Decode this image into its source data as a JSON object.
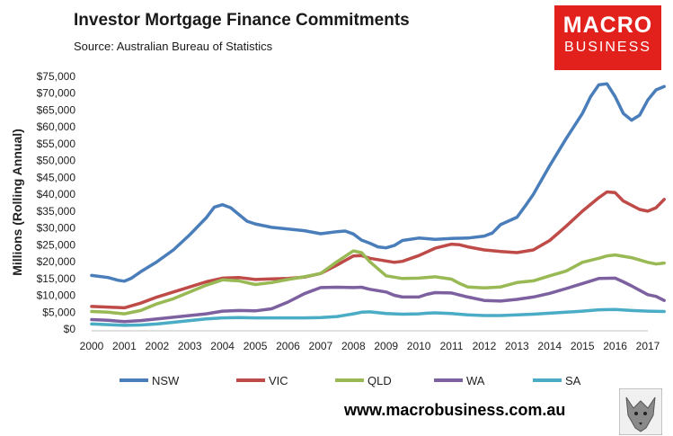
{
  "header": {
    "title": "Investor Mortgage Finance Commitments",
    "subtitle": "Source: Australian Bureau of Statistics"
  },
  "logo": {
    "line1": "MACRO",
    "line2": "BUSINESS",
    "color": "#e2201c",
    "mascot_icon": "wolf-icon"
  },
  "footer": {
    "url": "www.macrobusiness.com.au"
  },
  "chart_data": {
    "type": "line",
    "title": "Investor Mortgage Finance Commitments",
    "subtitle": "Source: Australian Bureau of Statistics",
    "xlabel": "",
    "ylabel": "Millions (Rolling Annual)",
    "xlim": [
      2000,
      2017
    ],
    "ylim": [
      0,
      75000
    ],
    "x_ticks": [
      "2000",
      "2001",
      "2002",
      "2003",
      "2004",
      "2005",
      "2006",
      "2007",
      "2008",
      "2009",
      "2010",
      "2011",
      "2012",
      "2013",
      "2014",
      "2015",
      "2016",
      "2017"
    ],
    "y_ticks": [
      "$0",
      "$5,000",
      "$10,000",
      "$15,000",
      "$20,000",
      "$25,000",
      "$30,000",
      "$35,000",
      "$40,000",
      "$45,000",
      "$50,000",
      "$55,000",
      "$60,000",
      "$65,000",
      "$70,000",
      "$75,000"
    ],
    "grid": false,
    "legend_position": "bottom",
    "series": [
      {
        "name": "NSW",
        "color": "#4a7ebb",
        "points": [
          [
            2000,
            15900
          ],
          [
            2000.5,
            15300
          ],
          [
            2000.8,
            14500
          ],
          [
            2001,
            14200
          ],
          [
            2001.2,
            15000
          ],
          [
            2001.5,
            17000
          ],
          [
            2002,
            20000
          ],
          [
            2002.5,
            23500
          ],
          [
            2003,
            28000
          ],
          [
            2003.5,
            33000
          ],
          [
            2003.75,
            36200
          ],
          [
            2004,
            36900
          ],
          [
            2004.25,
            36000
          ],
          [
            2004.5,
            34000
          ],
          [
            2004.75,
            32000
          ],
          [
            2005,
            31200
          ],
          [
            2005.5,
            30200
          ],
          [
            2006,
            29700
          ],
          [
            2006.5,
            29200
          ],
          [
            2007,
            28300
          ],
          [
            2007.5,
            28900
          ],
          [
            2007.75,
            29100
          ],
          [
            2008,
            28200
          ],
          [
            2008.25,
            26400
          ],
          [
            2008.5,
            25500
          ],
          [
            2008.75,
            24400
          ],
          [
            2009,
            24100
          ],
          [
            2009.25,
            24800
          ],
          [
            2009.5,
            26300
          ],
          [
            2010,
            27000
          ],
          [
            2010.5,
            26600
          ],
          [
            2011,
            26900
          ],
          [
            2011.5,
            27000
          ],
          [
            2012,
            27600
          ],
          [
            2012.25,
            28500
          ],
          [
            2012.5,
            31000
          ],
          [
            2013,
            33200
          ],
          [
            2013.25,
            36500
          ],
          [
            2013.5,
            40000
          ],
          [
            2014,
            48500
          ],
          [
            2014.5,
            56500
          ],
          [
            2015,
            64000
          ],
          [
            2015.25,
            69000
          ],
          [
            2015.5,
            72500
          ],
          [
            2015.75,
            72800
          ],
          [
            2016,
            69000
          ],
          [
            2016.25,
            64000
          ],
          [
            2016.5,
            62000
          ],
          [
            2016.75,
            63500
          ],
          [
            2017,
            68000
          ],
          [
            2017.25,
            71000
          ],
          [
            2017.5,
            72000
          ]
        ]
      },
      {
        "name": "VIC",
        "color": "#be4b48",
        "points": [
          [
            2000,
            6700
          ],
          [
            2000.5,
            6500
          ],
          [
            2001,
            6300
          ],
          [
            2001.5,
            7700
          ],
          [
            2002,
            9500
          ],
          [
            2002.5,
            11000
          ],
          [
            2003,
            12500
          ],
          [
            2003.5,
            14000
          ],
          [
            2004,
            15100
          ],
          [
            2004.5,
            15300
          ],
          [
            2005,
            14700
          ],
          [
            2005.5,
            14900
          ],
          [
            2006,
            15000
          ],
          [
            2006.5,
            15400
          ],
          [
            2007,
            16500
          ],
          [
            2007.5,
            19000
          ],
          [
            2008,
            21700
          ],
          [
            2008.25,
            21800
          ],
          [
            2008.5,
            21000
          ],
          [
            2009,
            20200
          ],
          [
            2009.25,
            19800
          ],
          [
            2009.5,
            20100
          ],
          [
            2010,
            21800
          ],
          [
            2010.5,
            24000
          ],
          [
            2011,
            25200
          ],
          [
            2011.25,
            25000
          ],
          [
            2011.5,
            24400
          ],
          [
            2012,
            23500
          ],
          [
            2012.5,
            23000
          ],
          [
            2013,
            22700
          ],
          [
            2013.5,
            23500
          ],
          [
            2014,
            26300
          ],
          [
            2014.5,
            30500
          ],
          [
            2015,
            35000
          ],
          [
            2015.5,
            39000
          ],
          [
            2015.75,
            40700
          ],
          [
            2016,
            40500
          ],
          [
            2016.25,
            38000
          ],
          [
            2016.75,
            35500
          ],
          [
            2017,
            35000
          ],
          [
            2017.25,
            36000
          ],
          [
            2017.5,
            38500
          ]
        ]
      },
      {
        "name": "QLD",
        "color": "#98b954",
        "points": [
          [
            2000,
            5200
          ],
          [
            2000.5,
            5000
          ],
          [
            2001,
            4500
          ],
          [
            2001.5,
            5500
          ],
          [
            2002,
            7500
          ],
          [
            2002.5,
            9000
          ],
          [
            2003,
            11000
          ],
          [
            2003.5,
            13000
          ],
          [
            2004,
            14600
          ],
          [
            2004.5,
            14300
          ],
          [
            2005,
            13200
          ],
          [
            2005.5,
            13800
          ],
          [
            2006,
            14700
          ],
          [
            2006.5,
            15500
          ],
          [
            2007,
            16500
          ],
          [
            2007.5,
            20000
          ],
          [
            2008,
            23200
          ],
          [
            2008.25,
            22700
          ],
          [
            2008.5,
            20000
          ],
          [
            2009,
            15800
          ],
          [
            2009.5,
            15000
          ],
          [
            2010,
            15100
          ],
          [
            2010.5,
            15500
          ],
          [
            2011,
            14800
          ],
          [
            2011.25,
            13500
          ],
          [
            2011.5,
            12500
          ],
          [
            2012,
            12200
          ],
          [
            2012.5,
            12500
          ],
          [
            2013,
            13800
          ],
          [
            2013.5,
            14300
          ],
          [
            2014,
            15800
          ],
          [
            2014.5,
            17200
          ],
          [
            2015,
            19800
          ],
          [
            2015.5,
            21000
          ],
          [
            2015.75,
            21700
          ],
          [
            2016,
            22000
          ],
          [
            2016.5,
            21200
          ],
          [
            2017,
            19800
          ],
          [
            2017.25,
            19300
          ],
          [
            2017.5,
            19600
          ]
        ]
      },
      {
        "name": "WA",
        "color": "#7d60a0",
        "points": [
          [
            2000,
            2800
          ],
          [
            2000.5,
            2600
          ],
          [
            2001,
            2200
          ],
          [
            2001.5,
            2500
          ],
          [
            2002,
            3000
          ],
          [
            2002.5,
            3500
          ],
          [
            2003,
            4000
          ],
          [
            2003.5,
            4500
          ],
          [
            2004,
            5300
          ],
          [
            2004.5,
            5500
          ],
          [
            2005,
            5400
          ],
          [
            2005.5,
            6000
          ],
          [
            2006,
            8000
          ],
          [
            2006.5,
            10500
          ],
          [
            2007,
            12300
          ],
          [
            2007.5,
            12400
          ],
          [
            2008,
            12300
          ],
          [
            2008.25,
            12400
          ],
          [
            2008.5,
            11800
          ],
          [
            2009,
            11000
          ],
          [
            2009.25,
            10000
          ],
          [
            2009.5,
            9500
          ],
          [
            2010,
            9500
          ],
          [
            2010.25,
            10300
          ],
          [
            2010.5,
            10800
          ],
          [
            2011,
            10700
          ],
          [
            2011.5,
            9500
          ],
          [
            2012,
            8500
          ],
          [
            2012.5,
            8300
          ],
          [
            2013,
            8800
          ],
          [
            2013.5,
            9500
          ],
          [
            2014,
            10600
          ],
          [
            2014.5,
            12000
          ],
          [
            2015,
            13500
          ],
          [
            2015.5,
            15000
          ],
          [
            2016,
            15100
          ],
          [
            2016.25,
            14000
          ],
          [
            2016.5,
            12800
          ],
          [
            2017,
            10200
          ],
          [
            2017.25,
            9700
          ],
          [
            2017.5,
            8500
          ]
        ]
      },
      {
        "name": "SA",
        "color": "#4bacc6",
        "points": [
          [
            2000,
            1500
          ],
          [
            2000.5,
            1300
          ],
          [
            2001,
            1100
          ],
          [
            2001.5,
            1200
          ],
          [
            2002,
            1500
          ],
          [
            2002.5,
            2000
          ],
          [
            2003,
            2500
          ],
          [
            2003.5,
            3000
          ],
          [
            2004,
            3300
          ],
          [
            2004.5,
            3400
          ],
          [
            2005,
            3300
          ],
          [
            2005.5,
            3300
          ],
          [
            2006,
            3300
          ],
          [
            2006.5,
            3300
          ],
          [
            2007,
            3400
          ],
          [
            2007.5,
            3700
          ],
          [
            2008,
            4500
          ],
          [
            2008.25,
            5000
          ],
          [
            2008.5,
            5100
          ],
          [
            2009,
            4600
          ],
          [
            2009.5,
            4400
          ],
          [
            2010,
            4500
          ],
          [
            2010.25,
            4700
          ],
          [
            2010.5,
            4800
          ],
          [
            2011,
            4600
          ],
          [
            2011.5,
            4200
          ],
          [
            2012,
            4000
          ],
          [
            2012.5,
            4000
          ],
          [
            2013,
            4200
          ],
          [
            2013.5,
            4400
          ],
          [
            2014,
            4700
          ],
          [
            2014.5,
            5000
          ],
          [
            2015,
            5300
          ],
          [
            2015.5,
            5700
          ],
          [
            2016,
            5800
          ],
          [
            2016.5,
            5500
          ],
          [
            2017,
            5300
          ],
          [
            2017.5,
            5200
          ]
        ]
      }
    ]
  }
}
